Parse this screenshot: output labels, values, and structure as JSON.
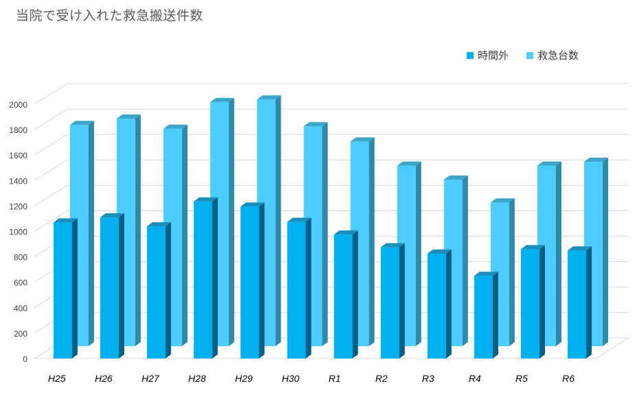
{
  "chart_data": {
    "type": "bar",
    "title": "当院で受け入れた救急搬送件数",
    "categories": [
      "H25",
      "H26",
      "H27",
      "H28",
      "H29",
      "H30",
      "R1",
      "R2",
      "R3",
      "R4",
      "R5",
      "R6"
    ],
    "series": [
      {
        "name": "時間外",
        "color": "#00b0f0",
        "values": [
          1070,
          1110,
          1040,
          1235,
          1195,
          1075,
          975,
          875,
          825,
          650,
          860,
          850
        ]
      },
      {
        "name": "救急台数",
        "color": "#4dccff",
        "values": [
          1740,
          1790,
          1710,
          1920,
          1940,
          1730,
          1610,
          1420,
          1310,
          1130,
          1420,
          1450
        ]
      }
    ],
    "yticks": [
      "0",
      "200",
      "400",
      "600",
      "800",
      "1000",
      "1200",
      "1400",
      "1600",
      "1800",
      "2000"
    ],
    "ylim": [
      0,
      2000
    ],
    "grid": true,
    "legend_position": "top-right"
  }
}
